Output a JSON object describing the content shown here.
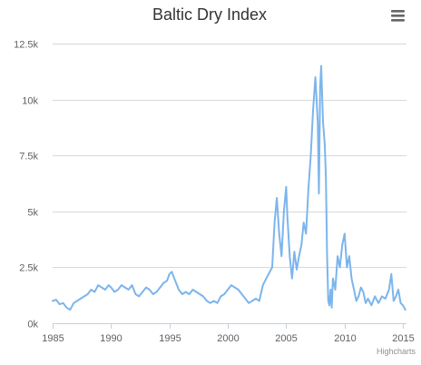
{
  "chart_data": {
    "type": "line",
    "title": "Baltic Dry Index",
    "xlabel": "",
    "ylabel": "",
    "xlim": [
      1985,
      2015.3
    ],
    "ylim": [
      0,
      12500
    ],
    "x_ticks": [
      "1985",
      "1990",
      "1995",
      "2000",
      "2005",
      "2010",
      "2015"
    ],
    "y_ticks": [
      "0k",
      "2.5k",
      "5k",
      "7.5k",
      "10k",
      "12.5k"
    ],
    "grid": true,
    "legend": "none",
    "series": [
      {
        "color": "#7cb5ec",
        "x": [
          1985.0,
          1985.3,
          1985.6,
          1985.9,
          1986.2,
          1986.5,
          1986.8,
          1987.1,
          1987.4,
          1987.7,
          1988.0,
          1988.3,
          1988.6,
          1988.9,
          1989.2,
          1989.5,
          1989.8,
          1990.0,
          1990.3,
          1990.6,
          1990.9,
          1991.2,
          1991.5,
          1991.8,
          1992.1,
          1992.4,
          1992.7,
          1993.0,
          1993.3,
          1993.6,
          1993.9,
          1994.2,
          1994.5,
          1994.8,
          1995.0,
          1995.2,
          1995.5,
          1995.8,
          1996.1,
          1996.4,
          1996.7,
          1997.0,
          1997.3,
          1997.6,
          1997.9,
          1998.2,
          1998.5,
          1998.8,
          1999.1,
          1999.4,
          1999.7,
          2000.0,
          2000.3,
          2000.6,
          2000.9,
          2001.2,
          2001.5,
          2001.8,
          2002.1,
          2002.4,
          2002.7,
          2003.0,
          2003.3,
          2003.6,
          2003.8,
          2004.0,
          2004.2,
          2004.4,
          2004.6,
          2004.8,
          2005.0,
          2005.1,
          2005.3,
          2005.5,
          2005.7,
          2005.9,
          2006.1,
          2006.3,
          2006.5,
          2006.7,
          2006.9,
          2007.1,
          2007.3,
          2007.5,
          2007.7,
          2007.8,
          2007.9,
          2008.0,
          2008.15,
          2008.3,
          2008.4,
          2008.5,
          2008.6,
          2008.7,
          2008.8,
          2008.9,
          2009.0,
          2009.2,
          2009.4,
          2009.6,
          2009.8,
          2010.0,
          2010.2,
          2010.4,
          2010.6,
          2010.8,
          2011.0,
          2011.2,
          2011.4,
          2011.6,
          2011.8,
          2012.0,
          2012.3,
          2012.6,
          2012.9,
          2013.2,
          2013.5,
          2013.8,
          2014.0,
          2014.2,
          2014.4,
          2014.6,
          2014.8,
          2015.0,
          2015.2
        ],
        "y": [
          1000,
          1050,
          850,
          900,
          700,
          600,
          900,
          1000,
          1100,
          1200,
          1300,
          1500,
          1400,
          1700,
          1600,
          1500,
          1700,
          1600,
          1400,
          1500,
          1700,
          1600,
          1500,
          1700,
          1300,
          1200,
          1400,
          1600,
          1500,
          1300,
          1400,
          1600,
          1800,
          1900,
          2200,
          2300,
          1900,
          1500,
          1300,
          1400,
          1300,
          1500,
          1400,
          1300,
          1200,
          1000,
          900,
          1000,
          900,
          1200,
          1300,
          1500,
          1700,
          1600,
          1500,
          1300,
          1100,
          900,
          1000,
          1100,
          1000,
          1700,
          2000,
          2300,
          2500,
          4500,
          5600,
          4000,
          3000,
          5000,
          6100,
          4800,
          3000,
          2000,
          3200,
          2400,
          3000,
          3500,
          4500,
          4000,
          6000,
          7500,
          9500,
          11000,
          9000,
          5800,
          10500,
          11500,
          9000,
          8000,
          6500,
          3000,
          1000,
          800,
          1500,
          700,
          2000,
          1500,
          3000,
          2500,
          3500,
          4000,
          2500,
          3000,
          2000,
          1500,
          1000,
          1200,
          1600,
          1400,
          900,
          1100,
          800,
          1200,
          900,
          1200,
          1100,
          1500,
          2200,
          1000,
          1200,
          1500,
          900,
          800,
          600
        ]
      }
    ]
  },
  "credit": "Highcharts",
  "menu_icon": "hamburger-menu-icon"
}
